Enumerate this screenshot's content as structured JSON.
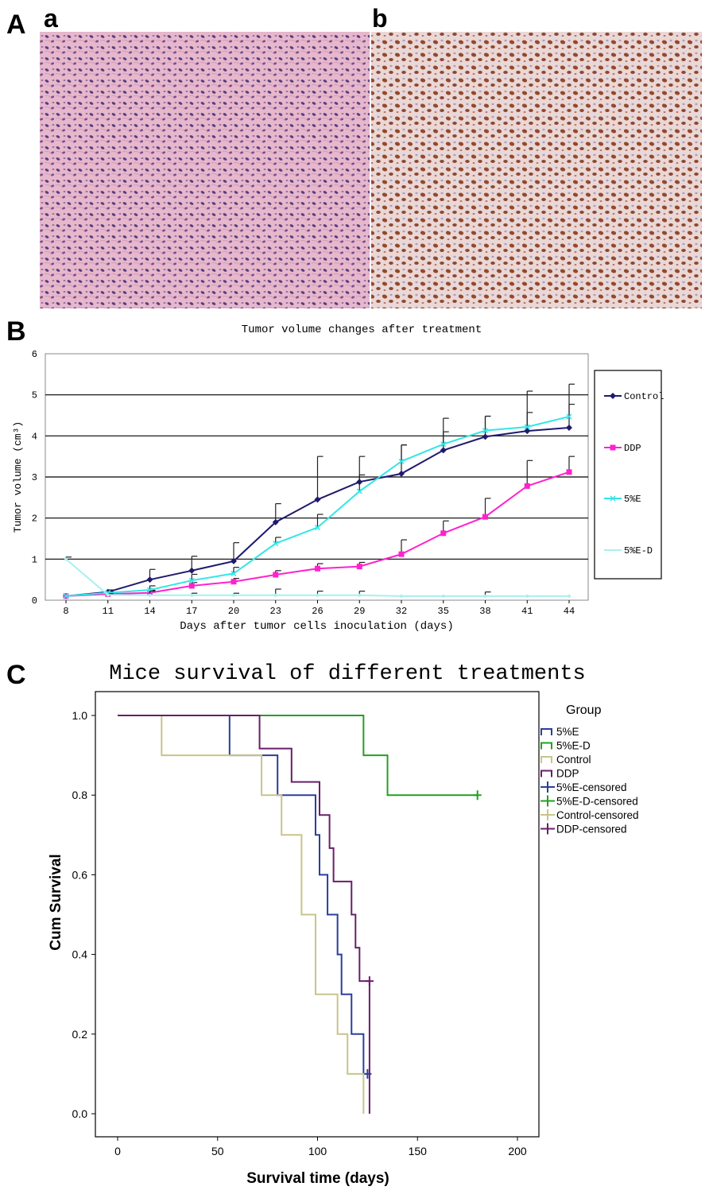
{
  "figure_labels": {
    "panel_a": "A",
    "panel_b": "B",
    "panel_c": "C",
    "sub_a": "a",
    "sub_b": "b"
  },
  "colors": {
    "control": "#1f1a6e",
    "ddp": "#ff22cc",
    "e5": "#33e6e6",
    "e5d": "#a8f0f0",
    "km_e5": "#2a3f9a",
    "km_e5d": "#22a022",
    "km_control": "#c9c48a",
    "km_ddp": "#6a1e6a",
    "he_bg": "#e7b7cc",
    "he_cell": "#3b2a6e",
    "ihc_bg": "#ead7d6",
    "ihc_cell": "#8a3a1a"
  },
  "chart_data": [
    {
      "type": "line",
      "title": "Tumor volume changes after treatment",
      "xlabel": "Days after tumor cells inoculation (days)",
      "ylabel": "Tumor volume (cm³)",
      "ylim": [
        0,
        6
      ],
      "yticks": [
        "0",
        "1",
        "2",
        "3",
        "4",
        "5",
        "6"
      ],
      "categories": [
        "8",
        "11",
        "14",
        "17",
        "20",
        "23",
        "26",
        "29",
        "32",
        "35",
        "38",
        "41",
        "44"
      ],
      "series": [
        {
          "name": "Control",
          "key": "control",
          "marker": "diamond",
          "values": [
            0.1,
            0.2,
            0.5,
            0.72,
            0.95,
            1.9,
            2.45,
            2.88,
            3.08,
            3.65,
            3.98,
            4.12,
            4.2
          ],
          "errors": [
            0.0,
            0.05,
            0.25,
            0.35,
            0.45,
            0.45,
            1.05,
            0.62,
            0.7,
            0.78,
            0.5,
            0.97,
            1.06
          ]
        },
        {
          "name": "DDP",
          "key": "ddp",
          "marker": "square",
          "values": [
            0.1,
            0.15,
            0.18,
            0.35,
            0.45,
            0.62,
            0.77,
            0.82,
            1.12,
            1.63,
            2.03,
            2.78,
            3.12
          ],
          "errors": [
            0.0,
            0.05,
            0.06,
            0.08,
            0.08,
            0.1,
            0.12,
            0.1,
            0.35,
            0.3,
            0.45,
            0.62,
            0.38
          ]
        },
        {
          "name": "5%E",
          "key": "e5",
          "marker": "x",
          "values": [
            0.1,
            0.18,
            0.25,
            0.48,
            0.65,
            1.38,
            1.77,
            2.65,
            3.38,
            3.8,
            4.13,
            4.22,
            4.47
          ],
          "errors": [
            0.0,
            0.04,
            0.1,
            0.15,
            0.15,
            0.15,
            0.32,
            0.4,
            0.4,
            0.3,
            0.35,
            0.35,
            0.3
          ]
        },
        {
          "name": "5%E-D",
          "key": "e5d",
          "marker": "dot",
          "values": [
            1.0,
            0.13,
            0.12,
            0.12,
            0.12,
            0.12,
            0.12,
            0.12,
            0.1,
            0.1,
            0.1,
            0.1,
            0.1
          ],
          "errors": [
            0.05,
            0.03,
            0.1,
            0.05,
            0.05,
            0.15,
            0.1,
            0.1,
            0.0,
            0.0,
            0.1,
            0.0,
            0.0
          ]
        }
      ],
      "legend": [
        "Control",
        "DDP",
        "5%E",
        "5%E-D"
      ]
    },
    {
      "type": "line",
      "subtype": "kaplan-meier",
      "title": "Mice survival of different treatments",
      "xlabel": "Survival time (days)",
      "ylabel": "Cum Survival",
      "xlim": [
        0,
        200
      ],
      "ylim": [
        0,
        1.0
      ],
      "xticks": [
        "0",
        "50",
        "100",
        "150",
        "200"
      ],
      "yticks": [
        "0.0",
        "0.2",
        "0.4",
        "0.6",
        "0.8",
        "1.0"
      ],
      "legend_title": "Group",
      "legend": [
        "5%E",
        "5%E-D",
        "Control",
        "DDP",
        "5%E-censored",
        "5%E-D-censored",
        "Control-censored",
        "DDP-censored"
      ],
      "series": [
        {
          "name": "5%E",
          "key": "km_e5",
          "points": [
            [
              0,
              1.0
            ],
            [
              56,
              1.0
            ],
            [
              56,
              0.9
            ],
            [
              80,
              0.9
            ],
            [
              80,
              0.8
            ],
            [
              99,
              0.8
            ],
            [
              99,
              0.7
            ],
            [
              101,
              0.7
            ],
            [
              101,
              0.6
            ],
            [
              105,
              0.6
            ],
            [
              105,
              0.5
            ],
            [
              110,
              0.5
            ],
            [
              110,
              0.4
            ],
            [
              112,
              0.4
            ],
            [
              112,
              0.3
            ],
            [
              117,
              0.3
            ],
            [
              117,
              0.2
            ],
            [
              123,
              0.2
            ],
            [
              123,
              0.1
            ],
            [
              125,
              0.1
            ]
          ],
          "censored": [
            [
              125,
              0.1
            ]
          ]
        },
        {
          "name": "5%E-D",
          "key": "km_e5d",
          "points": [
            [
              0,
              1.0
            ],
            [
              123,
              1.0
            ],
            [
              123,
              0.9
            ],
            [
              135,
              0.9
            ],
            [
              135,
              0.8
            ],
            [
              180,
              0.8
            ]
          ],
          "censored": [
            [
              180,
              0.8
            ]
          ]
        },
        {
          "name": "Control",
          "key": "km_control",
          "points": [
            [
              0,
              1.0
            ],
            [
              22,
              1.0
            ],
            [
              22,
              0.9
            ],
            [
              72,
              0.9
            ],
            [
              72,
              0.8
            ],
            [
              82,
              0.8
            ],
            [
              82,
              0.7
            ],
            [
              92,
              0.7
            ],
            [
              92,
              0.5
            ],
            [
              99,
              0.5
            ],
            [
              99,
              0.3
            ],
            [
              110,
              0.3
            ],
            [
              110,
              0.2
            ],
            [
              115,
              0.2
            ],
            [
              115,
              0.1
            ],
            [
              123,
              0.1
            ],
            [
              123,
              0.0
            ]
          ],
          "censored": []
        },
        {
          "name": "DDP",
          "key": "km_ddp",
          "points": [
            [
              0,
              1.0
            ],
            [
              71,
              1.0
            ],
            [
              71,
              0.917
            ],
            [
              87,
              0.917
            ],
            [
              87,
              0.833
            ],
            [
              101,
              0.833
            ],
            [
              101,
              0.75
            ],
            [
              106,
              0.75
            ],
            [
              106,
              0.667
            ],
            [
              108,
              0.667
            ],
            [
              108,
              0.583
            ],
            [
              117,
              0.583
            ],
            [
              117,
              0.5
            ],
            [
              119,
              0.5
            ],
            [
              119,
              0.417
            ],
            [
              121,
              0.417
            ],
            [
              121,
              0.333
            ],
            [
              126,
              0.333
            ],
            [
              126,
              0.0
            ]
          ],
          "censored": [
            [
              126,
              0.333
            ]
          ]
        }
      ]
    }
  ]
}
